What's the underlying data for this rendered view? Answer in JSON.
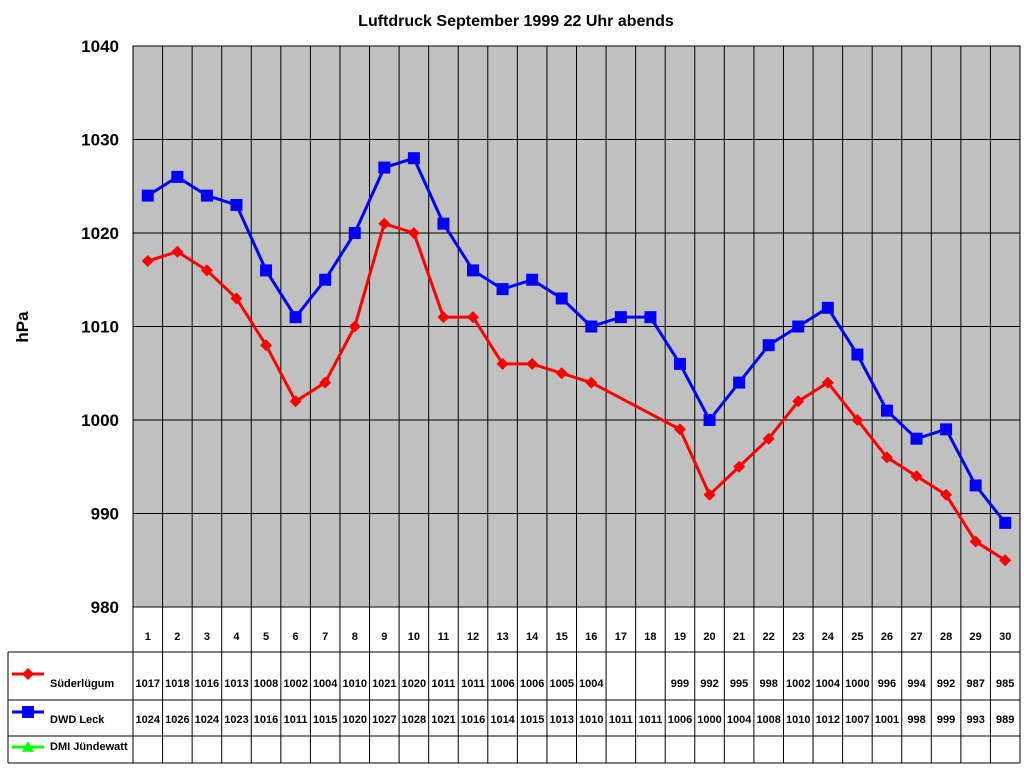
{
  "chart_data": {
    "type": "line",
    "title": "Luftdruck September 1999 22 Uhr abends",
    "xlabel": "",
    "ylabel": "hPa",
    "ylim": [
      980,
      1040
    ],
    "yticks": [
      "980",
      "990",
      "1000",
      "1010",
      "1020",
      "1030",
      "1040"
    ],
    "grid": true,
    "legend": "data table with legend keys below the chart",
    "categories": [
      "1",
      "2",
      "3",
      "4",
      "5",
      "6",
      "7",
      "8",
      "9",
      "10",
      "11",
      "12",
      "13",
      "14",
      "15",
      "16",
      "17",
      "18",
      "19",
      "20",
      "21",
      "22",
      "23",
      "24",
      "25",
      "26",
      "27",
      "28",
      "29",
      "30"
    ],
    "series": [
      {
        "name": "Süderlügum",
        "color": "#ff0000",
        "marker": "diamond",
        "values": [
          1017,
          1018,
          1016,
          1013,
          1008,
          1002,
          1004,
          1010,
          1021,
          1020,
          1011,
          1011,
          1006,
          1006,
          1005,
          1004,
          null,
          null,
          999,
          992,
          995,
          998,
          1002,
          1004,
          1000,
          996,
          994,
          992,
          987,
          985
        ]
      },
      {
        "name": "DWD Leck",
        "color": "#0000ff",
        "marker": "square",
        "values": [
          1024,
          1026,
          1024,
          1023,
          1016,
          1011,
          1015,
          1020,
          1027,
          1028,
          1021,
          1016,
          1014,
          1015,
          1013,
          1010,
          1011,
          1011,
          1006,
          1000,
          1004,
          1008,
          1010,
          1012,
          1007,
          1001,
          998,
          999,
          993,
          989
        ]
      },
      {
        "name": "DMI Jündewatt",
        "color": "#00ff00",
        "marker": "triangle",
        "values": [
          null,
          null,
          null,
          null,
          null,
          null,
          null,
          null,
          null,
          null,
          null,
          null,
          null,
          null,
          null,
          null,
          null,
          null,
          null,
          null,
          null,
          null,
          null,
          null,
          null,
          null,
          null,
          null,
          null,
          null
        ]
      }
    ]
  },
  "colors": {
    "plot_background": "#c0c0c0",
    "grid": "#000000"
  }
}
